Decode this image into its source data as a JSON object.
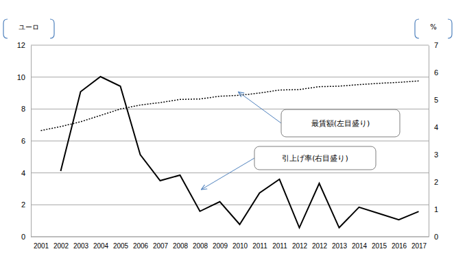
{
  "chart_data": {
    "type": "line",
    "y_label": "ユーロ",
    "y2_label": "%",
    "categories": [
      "2001",
      "2002",
      "2003",
      "2004",
      "2005",
      "2006",
      "2007",
      "2008",
      "2008",
      "2009",
      "2010",
      "2011",
      "2011",
      "2012",
      "2012",
      "2013",
      "2014",
      "2015",
      "2016",
      "2017"
    ],
    "series": [
      {
        "name": "最賃額(左目盛り)",
        "color": "#000000",
        "line_style": "dotted",
        "values": [
          6.65,
          6.9,
          7.2,
          7.6,
          8.0,
          8.25,
          8.4,
          8.6,
          8.63,
          8.8,
          8.86,
          9.0,
          9.19,
          9.22,
          9.4,
          9.43,
          9.53,
          9.61,
          9.67,
          9.76
        ]
      },
      {
        "name": "引上げ率(右目盛り)",
        "color": "#000000",
        "line_style": "solid",
        "axis": "y2",
        "values": [
          null,
          2.4,
          5.3,
          5.85,
          5.5,
          3.0,
          2.05,
          2.25,
          0.93,
          1.28,
          0.45,
          1.6,
          2.1,
          0.33,
          1.95,
          0.33,
          1.08,
          0.85,
          0.62,
          0.92
        ]
      }
    ],
    "ylim": [
      0,
      12
    ],
    "yticks": [
      0,
      2,
      4,
      6,
      8,
      10,
      12
    ],
    "y2lim": [
      0,
      7
    ],
    "y2ticks": [
      0,
      1,
      2,
      3,
      4,
      5,
      6,
      7
    ],
    "grid": true
  }
}
